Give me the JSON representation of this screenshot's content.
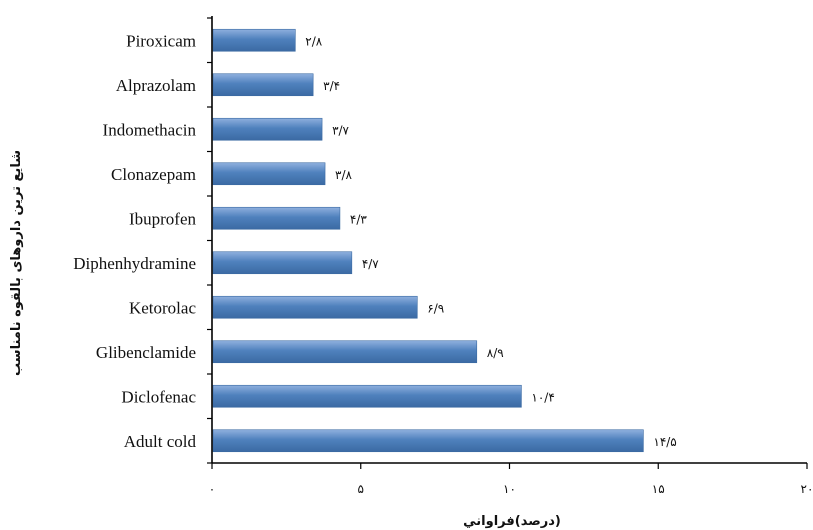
{
  "chart_data": {
    "type": "bar",
    "orientation": "horizontal",
    "categories": [
      "Piroxicam",
      "Alprazolam",
      "Indomethacin",
      "Clonazepam",
      "Ibuprofen",
      "Diphenhydramine",
      "Ketorolac",
      "Glibenclamide",
      "Diclofenac",
      "Adult cold"
    ],
    "values": [
      2.8,
      3.4,
      3.7,
      3.8,
      4.3,
      4.7,
      6.9,
      8.9,
      10.4,
      14.5
    ],
    "value_labels": [
      "۲/۸",
      "۳/۴",
      "۳/۷",
      "۳/۸",
      "۴/۳",
      "۴/۷",
      "۶/۹",
      "۸/۹",
      "۱۰/۴",
      "۱۴/۵"
    ],
    "xlabel": "(درصد)فراواني",
    "ylabel": "شایع ترین داروهای بالقوه نامناسب",
    "xlim": [
      0,
      20
    ],
    "xticks": [
      0,
      5,
      10,
      15,
      20
    ],
    "xtick_labels": [
      "۰",
      "۵",
      "۱۰",
      "۱۵",
      "۲۰"
    ],
    "grid": false,
    "legend": "none",
    "bar_color": "#4f81bd",
    "bar_color_light": "#8fb0de",
    "bar_color_dark": "#3b6aa3"
  }
}
